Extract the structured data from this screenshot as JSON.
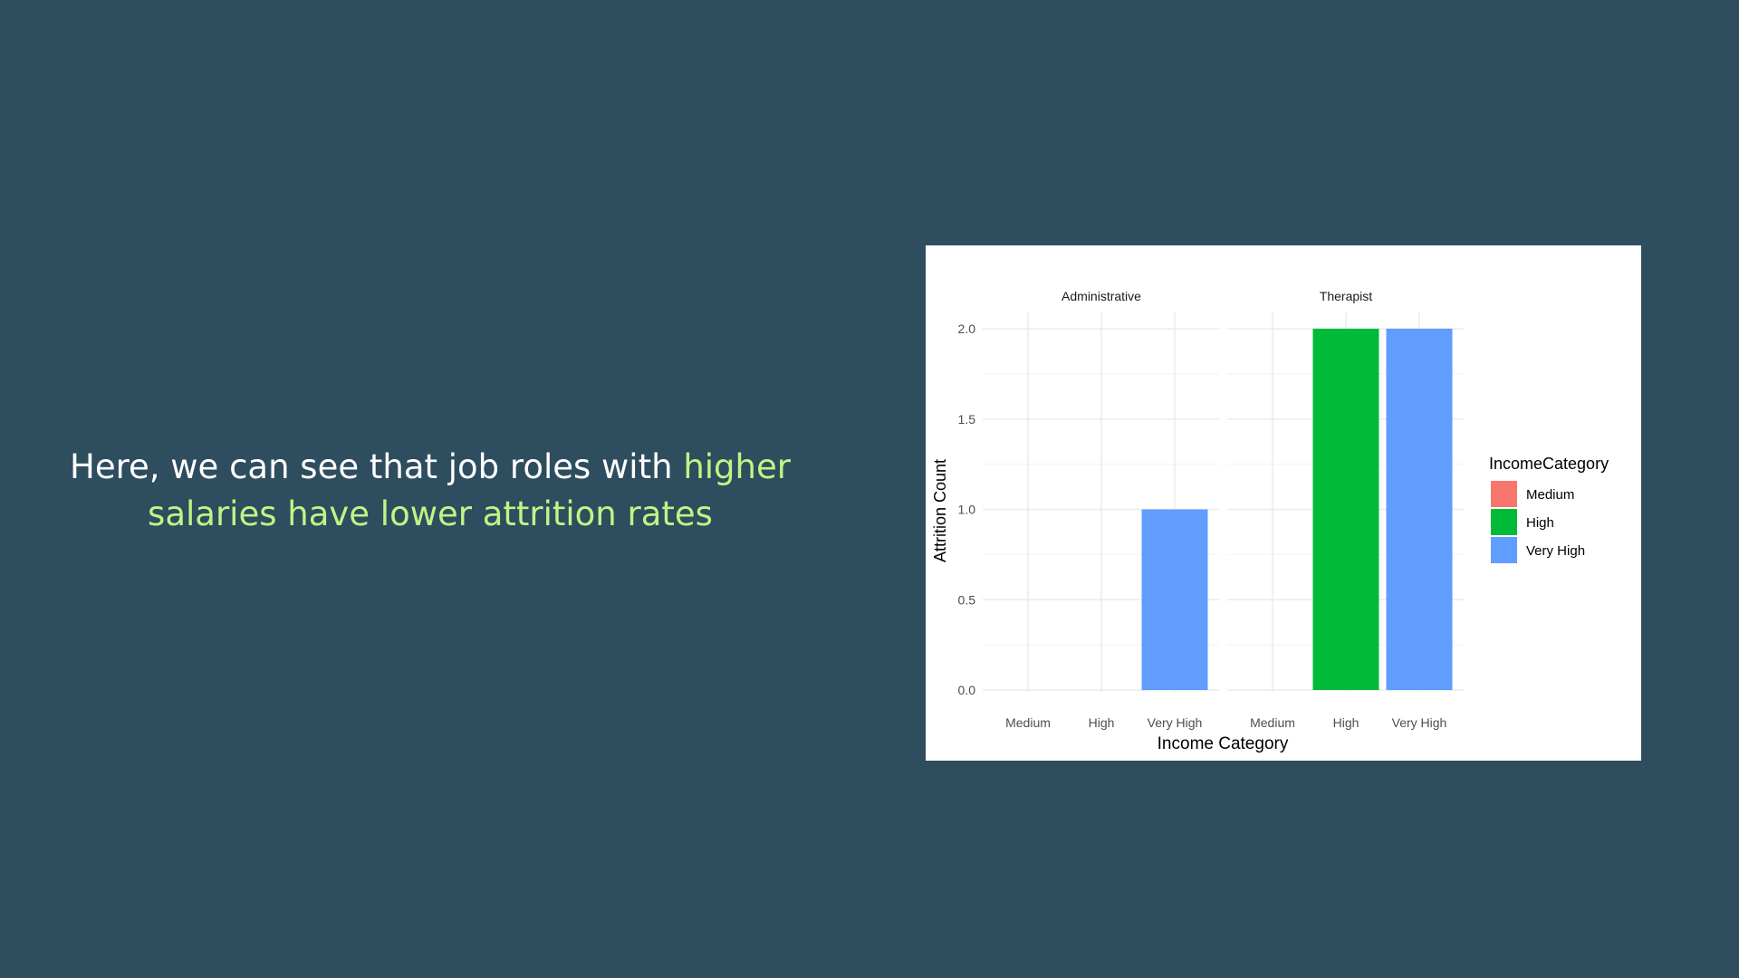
{
  "slide": {
    "text_part1": "Here, we can see that job roles with ",
    "text_highlight": "higher salaries have lower attrition rates"
  },
  "colors": {
    "background": "#2e4d5f",
    "highlight": "#c1f485",
    "medium": "#f8766d",
    "high": "#00ba38",
    "very_high": "#619cff"
  },
  "chart_data": {
    "type": "bar",
    "xlabel": "Income Category",
    "ylabel": "Attrition Count",
    "ylim": [
      0,
      2.1
    ],
    "yticks": [
      "0.0",
      "0.5",
      "1.0",
      "1.5",
      "2.0"
    ],
    "categories": [
      "Medium",
      "High",
      "Very High"
    ],
    "grid": true,
    "legend": {
      "title": "IncomeCategory",
      "position": "right",
      "items": [
        "Medium",
        "High",
        "Very High"
      ]
    },
    "facets": [
      {
        "name": "Administrative",
        "values": [
          0,
          0,
          1
        ]
      },
      {
        "name": "Therapist",
        "values": [
          0,
          2,
          2
        ]
      }
    ]
  }
}
